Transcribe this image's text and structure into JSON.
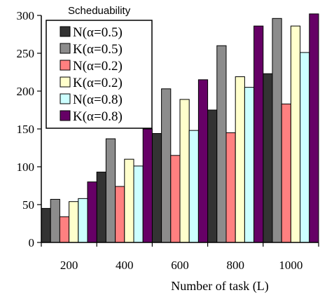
{
  "chart_data": {
    "type": "bar",
    "xlabel": "Number of task (L)",
    "ylabel": "",
    "ylim": [
      0,
      300
    ],
    "yticks": [
      0,
      50,
      100,
      150,
      200,
      250,
      300
    ],
    "categories": [
      "200",
      "400",
      "600",
      "800",
      "1000"
    ],
    "legend_title": "Scheduability",
    "legend_placement": "top-left",
    "grid": false,
    "series": [
      {
        "name": "N(α=0.5)",
        "color": "#333333",
        "values": [
          45,
          93,
          144,
          175,
          223
        ]
      },
      {
        "name": "K(α=0.5)",
        "color": "#8c8c8c",
        "values": [
          57,
          137,
          203,
          260,
          296
        ]
      },
      {
        "name": "N(α=0.2)",
        "color": "#ff8080",
        "values": [
          34,
          74,
          115,
          145,
          183
        ]
      },
      {
        "name": "K(α=0.2)",
        "color": "#ffffcc",
        "values": [
          54,
          110,
          189,
          219,
          286
        ]
      },
      {
        "name": "N(α=0.8)",
        "color": "#ccffff",
        "values": [
          58,
          101,
          148,
          205,
          251
        ]
      },
      {
        "name": "K(α=0.8)",
        "color": "#660066",
        "values": [
          80,
          150,
          215,
          286,
          306
        ]
      }
    ]
  }
}
